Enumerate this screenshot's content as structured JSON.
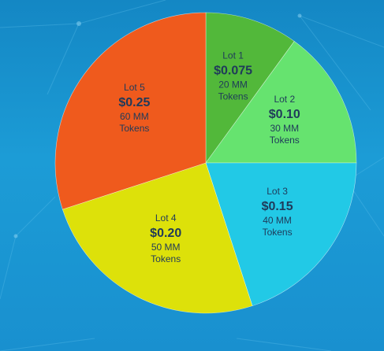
{
  "chart_data": {
    "type": "pie",
    "slices": [
      {
        "lot": "Lot 1",
        "price": "$0.075",
        "amount": "20 MM",
        "unit": "Tokens",
        "value": 20,
        "color": "#52b83a"
      },
      {
        "lot": "Lot 2",
        "price": "$0.10",
        "amount": "30 MM",
        "unit": "Tokens",
        "value": 30,
        "color": "#66e36f"
      },
      {
        "lot": "Lot 3",
        "price": "$0.15",
        "amount": "40 MM",
        "unit": "Tokens",
        "value": 40,
        "color": "#22c9e6"
      },
      {
        "lot": "Lot 4",
        "price": "$0.20",
        "amount": "50 MM",
        "unit": "Tokens",
        "value": 50,
        "color": "#dde10a"
      },
      {
        "lot": "Lot 5",
        "price": "$0.25",
        "amount": "60 MM",
        "unit": "Tokens",
        "value": 60,
        "color": "#ef5a1d"
      }
    ],
    "start": "12 o'clock",
    "direction": "clockwise",
    "legend": "none"
  }
}
